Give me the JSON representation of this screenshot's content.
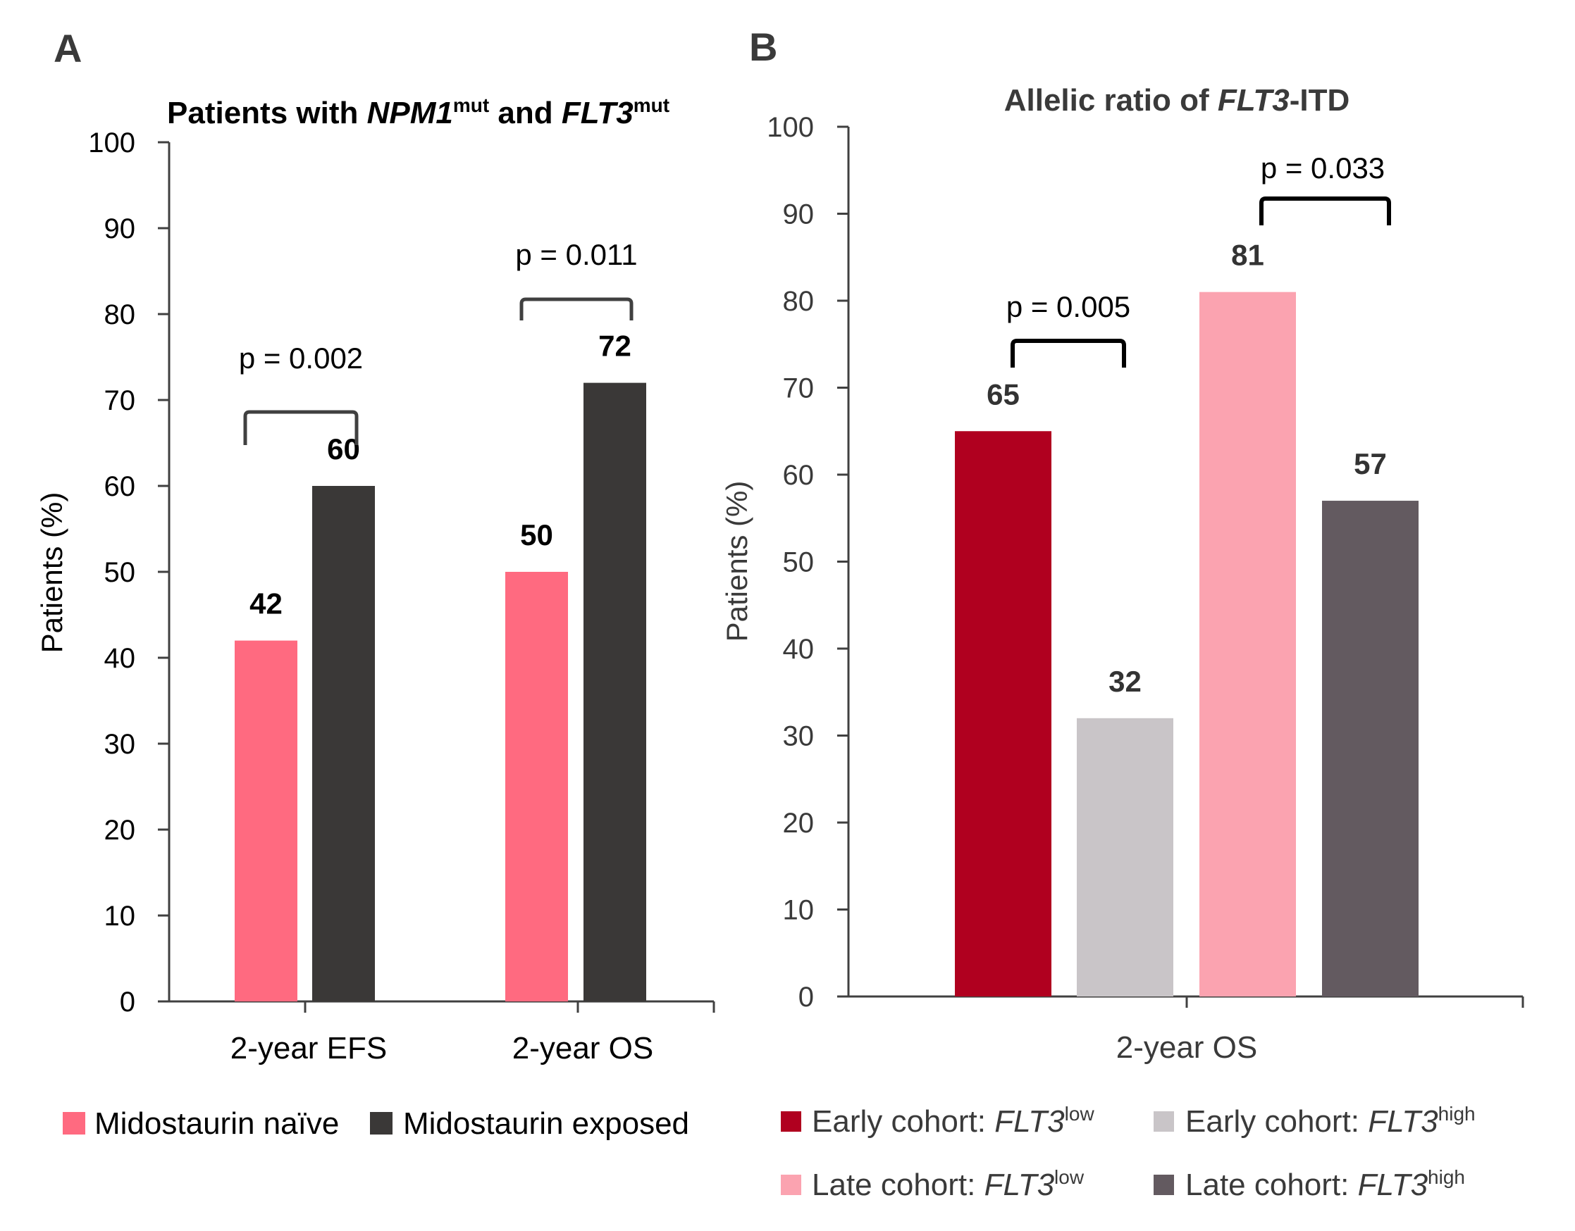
{
  "chart_data": [
    {
      "panel": "A",
      "type": "bar",
      "title": {
        "parts": [
          {
            "text": "Patients with  ",
            "style": "normal"
          },
          {
            "text": "NPM1",
            "style": "italic"
          },
          {
            "text": "mut",
            "style": "sup"
          },
          {
            "text": " and ",
            "style": "normal"
          },
          {
            "text": "FLT3",
            "style": "italic"
          },
          {
            "text": "mut",
            "style": "sup"
          }
        ]
      },
      "ylabel": "Patients (%)",
      "xlabel": "",
      "ylim": [
        0,
        100
      ],
      "yticks": [
        0,
        10,
        20,
        30,
        40,
        50,
        60,
        70,
        80,
        90,
        100
      ],
      "grid": false,
      "categories": [
        "2-year EFS",
        "2-year OS"
      ],
      "series": [
        {
          "name": "Midostaurin naïve",
          "color": "#FF6A80",
          "values": [
            42,
            50
          ]
        },
        {
          "name": "Midostaurin exposed",
          "color": "#3A3837",
          "values": [
            60,
            72
          ]
        }
      ],
      "annotations": [
        {
          "category": "2-year EFS",
          "text": "p = 0.002"
        },
        {
          "category": "2-year OS",
          "text": "p = 0.011"
        }
      ],
      "legend": {
        "placement": "bottom",
        "items": [
          {
            "parts": [
              {
                "text": "Midostaurin naïve",
                "style": "normal"
              }
            ],
            "color": "#FF6A80"
          },
          {
            "parts": [
              {
                "text": "Midostaurin exposed",
                "style": "normal"
              }
            ],
            "color": "#3A3837"
          }
        ]
      },
      "text_color": "#000000",
      "axis_color": "#404040"
    },
    {
      "panel": "B",
      "type": "bar",
      "title": {
        "parts": [
          {
            "text": "Allelic ratio of  ",
            "style": "normal"
          },
          {
            "text": "FLT3",
            "style": "italic"
          },
          {
            "text": "-ITD",
            "style": "normal"
          }
        ]
      },
      "ylabel": "Patients (%)",
      "xlabel": "",
      "ylim": [
        0,
        100
      ],
      "yticks": [
        0,
        10,
        20,
        30,
        40,
        50,
        60,
        70,
        80,
        90,
        100
      ],
      "grid": false,
      "categories": [
        "2-year OS"
      ],
      "series": [
        {
          "name": "Early cohort: FLT3low",
          "color": "#B0001F",
          "values": [
            65
          ]
        },
        {
          "name": "Early cohort: FLT3high",
          "color": "#C9C5C8",
          "values": [
            32
          ]
        },
        {
          "name": "Late cohort: FLT3low",
          "color": "#FBA3B0",
          "values": [
            81
          ]
        },
        {
          "name": "Late cohort: FLT3high",
          "color": "#635A60",
          "values": [
            57
          ]
        }
      ],
      "annotations": [
        {
          "between": [
            "Early cohort: FLT3low",
            "Early cohort: FLT3high"
          ],
          "text": "p = 0.005"
        },
        {
          "between": [
            "Late cohort: FLT3low",
            "Late cohort: FLT3high"
          ],
          "text": "p = 0.033"
        }
      ],
      "legend": {
        "placement": "bottom",
        "items": [
          {
            "parts": [
              {
                "text": "Early cohort: ",
                "style": "normal"
              },
              {
                "text": "FLT3",
                "style": "italic"
              },
              {
                "text": "low",
                "style": "sup"
              }
            ],
            "color": "#B0001F"
          },
          {
            "parts": [
              {
                "text": "Early cohort: ",
                "style": "normal"
              },
              {
                "text": "FLT3",
                "style": "italic"
              },
              {
                "text": "high",
                "style": "sup"
              }
            ],
            "color": "#C9C5C8"
          },
          {
            "parts": [
              {
                "text": "Late cohort: ",
                "style": "normal"
              },
              {
                "text": "FLT3",
                "style": "italic"
              },
              {
                "text": "low",
                "style": "sup"
              }
            ],
            "color": "#FBA3B0"
          },
          {
            "parts": [
              {
                "text": "Late cohort: ",
                "style": "normal"
              },
              {
                "text": "FLT3",
                "style": "italic"
              },
              {
                "text": "high",
                "style": "sup"
              }
            ],
            "color": "#635A60"
          }
        ]
      },
      "text_color": "#3A3A3A",
      "axis_color": "#404040"
    }
  ]
}
